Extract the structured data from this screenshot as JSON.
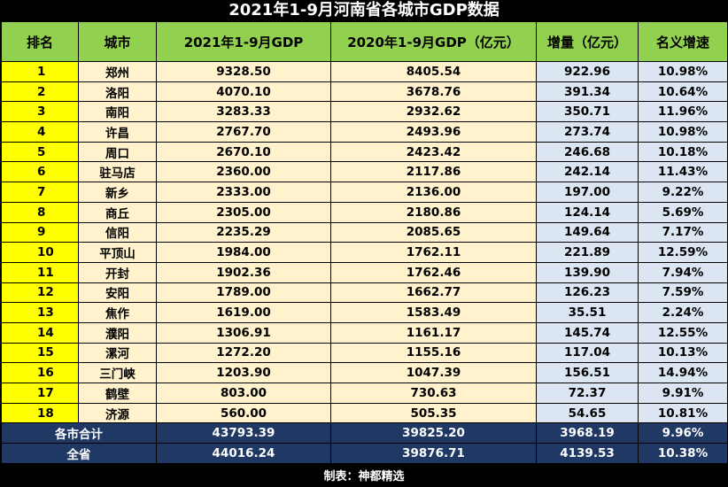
{
  "title": "2021年1-9月河南省各城市GDP数据",
  "footer": "制表：神都精选",
  "chart_data": {
    "type": "table",
    "title": "2021年1-9月河南省各城市GDP数据",
    "columns": [
      "排名",
      "城市",
      "2021年1-9月GDP",
      "2020年1-9月GDP（亿元）",
      "增量（亿元）",
      "名义增速"
    ],
    "rows": [
      [
        "1",
        "郑州",
        "9328.50",
        "8405.54",
        "922.96",
        "10.98%"
      ],
      [
        "2",
        "洛阳",
        "4070.10",
        "3678.76",
        "391.34",
        "10.64%"
      ],
      [
        "3",
        "南阳",
        "3283.33",
        "2932.62",
        "350.71",
        "11.96%"
      ],
      [
        "4",
        "许昌",
        "2767.70",
        "2493.96",
        "273.74",
        "10.98%"
      ],
      [
        "5",
        "周口",
        "2670.10",
        "2423.42",
        "246.68",
        "10.18%"
      ],
      [
        "6",
        "驻马店",
        "2360.00",
        "2117.86",
        "242.14",
        "11.43%"
      ],
      [
        "7",
        "新乡",
        "2333.00",
        "2136.00",
        "197.00",
        "9.22%"
      ],
      [
        "8",
        "商丘",
        "2305.00",
        "2180.86",
        "124.14",
        "5.69%"
      ],
      [
        "9",
        "信阳",
        "2235.29",
        "2085.65",
        "149.64",
        "7.17%"
      ],
      [
        "10",
        "平顶山",
        "1984.00",
        "1762.11",
        "221.89",
        "12.59%"
      ],
      [
        "11",
        "开封",
        "1902.36",
        "1762.46",
        "139.90",
        "7.94%"
      ],
      [
        "12",
        "安阳",
        "1789.00",
        "1662.77",
        "126.23",
        "7.59%"
      ],
      [
        "13",
        "焦作",
        "1619.00",
        "1583.49",
        "35.51",
        "2.24%"
      ],
      [
        "14",
        "濮阳",
        "1306.91",
        "1161.17",
        "145.74",
        "12.55%"
      ],
      [
        "15",
        "漯河",
        "1272.20",
        "1155.16",
        "117.04",
        "10.13%"
      ],
      [
        "16",
        "三门峡",
        "1203.90",
        "1047.39",
        "156.51",
        "14.94%"
      ],
      [
        "17",
        "鹤壁",
        "803.00",
        "730.63",
        "72.37",
        "9.91%"
      ],
      [
        "18",
        "济源",
        "560.00",
        "505.35",
        "54.65",
        "10.81%"
      ]
    ],
    "summary_rows": [
      [
        "各市合计",
        "43793.39",
        "39825.20",
        "3968.19",
        "9.96%"
      ],
      [
        "全省",
        "44016.24",
        "39876.71",
        "4139.53",
        "10.38%"
      ]
    ]
  }
}
